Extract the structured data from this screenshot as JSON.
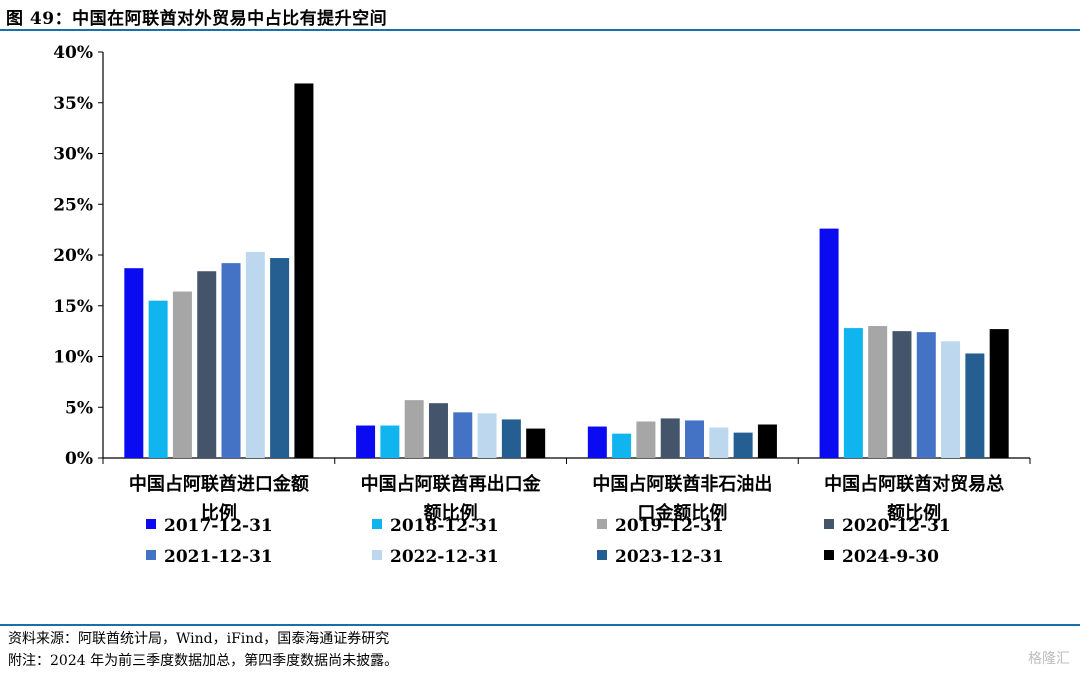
{
  "title": "图 49：中国在阿联酋对外贸易中占比有提升空间",
  "footer": {
    "source": "资料来源：阿联酋统计局，Wind，iFind，国泰海通证券研究",
    "note": "附注：2024 年为前三季度数据加总，第四季度数据尚未披露。"
  },
  "watermark": "格隆汇",
  "chart_data": {
    "type": "bar",
    "categories": [
      [
        "中国占阿联酋进口金额",
        "比例"
      ],
      [
        "中国占阿联酋再出口金",
        "额比例"
      ],
      [
        "中国占阿联酋非石油出",
        "口金额比例"
      ],
      [
        "中国占阿联酋对贸易总",
        "额比例"
      ]
    ],
    "ylim": [
      0,
      40
    ],
    "yticks": [
      0,
      5,
      10,
      15,
      20,
      25,
      30,
      35,
      40
    ],
    "ytick_labels": [
      "0%",
      "5%",
      "10%",
      "15%",
      "20%",
      "25%",
      "30%",
      "35%",
      "40%"
    ],
    "legend_position": "bottom",
    "grid": false,
    "series": [
      {
        "name": "2017-12-31",
        "color": "#0b0bf2",
        "values": [
          18.7,
          3.2,
          3.1,
          22.6
        ]
      },
      {
        "name": "2018-12-31",
        "color": "#10b4ee",
        "values": [
          15.5,
          3.2,
          2.4,
          12.8
        ]
      },
      {
        "name": "2019-12-31",
        "color": "#a6a6a6",
        "values": [
          16.4,
          5.7,
          3.6,
          13.0
        ]
      },
      {
        "name": "2020-12-31",
        "color": "#44546a",
        "values": [
          18.4,
          5.4,
          3.9,
          12.5
        ]
      },
      {
        "name": "2021-12-31",
        "color": "#4472c4",
        "values": [
          19.2,
          4.5,
          3.7,
          12.4
        ]
      },
      {
        "name": "2022-12-31",
        "color": "#bdd7ee",
        "values": [
          20.3,
          4.4,
          3.0,
          11.5
        ]
      },
      {
        "name": "2023-12-31",
        "color": "#255e91",
        "values": [
          19.7,
          3.8,
          2.5,
          10.3
        ]
      },
      {
        "name": "2024-9-30",
        "color": "#000000",
        "values": [
          36.9,
          2.9,
          3.3,
          12.7
        ]
      }
    ]
  }
}
